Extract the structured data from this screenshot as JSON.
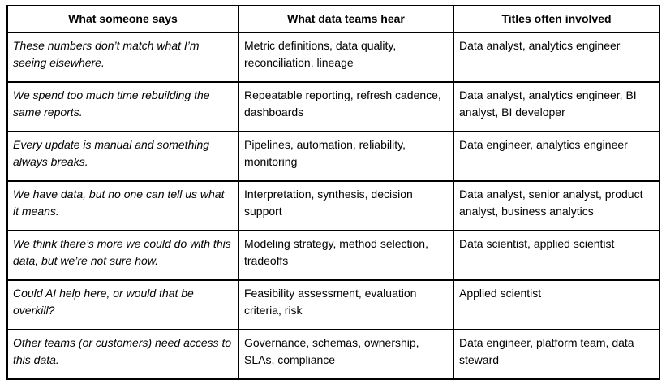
{
  "colors": {
    "border": "#000000",
    "background": "#ffffff",
    "text": "#000000"
  },
  "table": {
    "headers": {
      "says": "What someone says",
      "hear": "What data teams hear",
      "titles": "Titles often involved"
    },
    "rows": [
      {
        "says": "These numbers don’t match what I’m seeing elsewhere.",
        "hear": "Metric definitions, data quality, reconciliation, lineage",
        "titles": "Data analyst, analytics engineer"
      },
      {
        "says": "We spend too much time rebuilding the same reports.",
        "hear": "Repeatable reporting, refresh cadence, dashboards",
        "titles": "Data analyst, analytics engineer, BI analyst, BI developer"
      },
      {
        "says": "Every update is manual and something always breaks.",
        "hear": "Pipelines, automation, reliability, monitoring",
        "titles": "Data engineer, analytics engineer"
      },
      {
        "says": "We have data, but no one can tell us what it means.",
        "hear": "Interpretation, synthesis, decision support",
        "titles": "Data analyst, senior analyst, product analyst, business analytics"
      },
      {
        "says": "We think there’s more we could do with this data, but we’re not sure how.",
        "hear": "Modeling strategy, method selection, tradeoffs",
        "titles": "Data scientist, applied scientist"
      },
      {
        "says": "Could AI help here, or would that be overkill?",
        "hear": "Feasibility assessment, evaluation criteria, risk",
        "titles": "Applied scientist"
      },
      {
        "says": "Other teams (or customers) need access to this data.",
        "hear": "Governance, schemas, ownership, SLAs, compliance",
        "titles": "Data engineer, platform team, data steward"
      }
    ]
  }
}
